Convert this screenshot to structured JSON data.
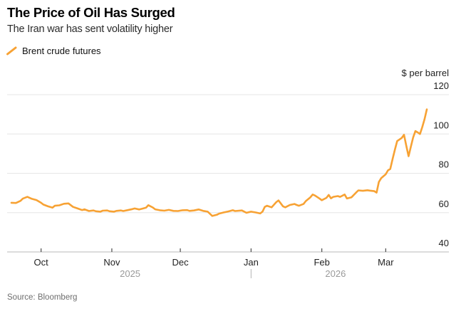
{
  "source": "Source: Bloomberg",
  "colors": {
    "line": "#F7A234",
    "grid": "#E6E6E6",
    "baseline": "#C6C6C6",
    "month_tick": "#4A4A4A",
    "year_text": "#9A9A9A",
    "year_divider": "#B5B5B5"
  },
  "chart_data": {
    "type": "line",
    "title": "The Price of Oil Has Surged",
    "subtitle": "The Iran war has sent volatility higher",
    "ylabel": "$ per barrel",
    "ylim": [
      40,
      120
    ],
    "y_ticks": [
      40,
      60,
      80,
      100,
      120
    ],
    "grid": "horizontal",
    "legend_position": "top-left",
    "x_range": [
      "2025-09-18",
      "2026-03-19"
    ],
    "x_ticks": [
      {
        "label": "Oct",
        "date": "2025-10-01"
      },
      {
        "label": "Nov",
        "date": "2025-11-01"
      },
      {
        "label": "Dec",
        "date": "2025-12-01"
      },
      {
        "label": "Jan",
        "date": "2026-01-01"
      },
      {
        "label": "Feb",
        "date": "2026-02-01"
      },
      {
        "label": "Mar",
        "date": "2026-03-01"
      }
    ],
    "year_labels": [
      {
        "label": "2025",
        "date": "2025-11-09"
      },
      {
        "label": "2026",
        "date": "2026-02-07"
      }
    ],
    "year_divider_date": "2026-01-01",
    "series": [
      {
        "name": "Brent crude futures",
        "dates": [
          "2025-09-18",
          "2025-09-20",
          "2025-09-22",
          "2025-09-23",
          "2025-09-25",
          "2025-09-27",
          "2025-09-29",
          "2025-10-01",
          "2025-10-02",
          "2025-10-04",
          "2025-10-06",
          "2025-10-07",
          "2025-10-09",
          "2025-10-11",
          "2025-10-13",
          "2025-10-15",
          "2025-10-17",
          "2025-10-19",
          "2025-10-20",
          "2025-10-22",
          "2025-10-24",
          "2025-10-25",
          "2025-10-27",
          "2025-10-28",
          "2025-10-30",
          "2025-10-31",
          "2025-11-02",
          "2025-11-03",
          "2025-11-05",
          "2025-11-06",
          "2025-11-08",
          "2025-11-10",
          "2025-11-11",
          "2025-11-13",
          "2025-11-14",
          "2025-11-16",
          "2025-11-17",
          "2025-11-19",
          "2025-11-20",
          "2025-11-22",
          "2025-11-24",
          "2025-11-26",
          "2025-11-28",
          "2025-11-30",
          "2025-12-02",
          "2025-12-04",
          "2025-12-05",
          "2025-12-07",
          "2025-12-09",
          "2025-12-11",
          "2025-12-13",
          "2025-12-15",
          "2025-12-17",
          "2025-12-18",
          "2025-12-20",
          "2025-12-22",
          "2025-12-24",
          "2025-12-25",
          "2025-12-28",
          "2025-12-30",
          "2026-01-01",
          "2026-01-03",
          "2026-01-05",
          "2026-01-06",
          "2026-01-07",
          "2026-01-08",
          "2026-01-10",
          "2026-01-12",
          "2026-01-13",
          "2026-01-15",
          "2026-01-16",
          "2026-01-18",
          "2026-01-20",
          "2026-01-21",
          "2026-01-22",
          "2026-01-24",
          "2026-01-25",
          "2026-01-27",
          "2026-01-28",
          "2026-01-29",
          "2026-01-31",
          "2026-02-01",
          "2026-02-03",
          "2026-02-04",
          "2026-02-05",
          "2026-02-06",
          "2026-02-08",
          "2026-02-09",
          "2026-02-11",
          "2026-02-12",
          "2026-02-14",
          "2026-02-16",
          "2026-02-17",
          "2026-02-19",
          "2026-02-21",
          "2026-02-22",
          "2026-02-24",
          "2026-02-25",
          "2026-02-26",
          "2026-02-27",
          "2026-03-01",
          "2026-03-02",
          "2026-03-03",
          "2026-03-04",
          "2026-03-05",
          "2026-03-06",
          "2026-03-08",
          "2026-03-09",
          "2026-03-10",
          "2026-03-11",
          "2026-03-12",
          "2026-03-13",
          "2026-03-14",
          "2026-03-15",
          "2026-03-16",
          "2026-03-17",
          "2026-03-18",
          "2026-03-19"
        ],
        "values": [
          65.0,
          64.9,
          66.0,
          67.1,
          68.0,
          67.0,
          66.4,
          65.0,
          64.1,
          63.2,
          62.5,
          63.5,
          63.7,
          64.5,
          64.7,
          62.9,
          62.1,
          61.3,
          61.7,
          60.8,
          61.1,
          60.7,
          60.5,
          61.0,
          61.1,
          60.7,
          60.5,
          60.9,
          61.1,
          60.8,
          61.3,
          61.8,
          62.1,
          61.6,
          61.9,
          62.5,
          63.8,
          62.6,
          61.7,
          61.2,
          61.0,
          61.4,
          60.9,
          60.8,
          61.2,
          61.3,
          60.9,
          61.1,
          61.6,
          60.9,
          60.5,
          58.3,
          58.9,
          59.5,
          60.1,
          60.6,
          61.2,
          60.8,
          61.1,
          59.9,
          60.5,
          60.1,
          59.6,
          60.5,
          62.9,
          63.5,
          62.7,
          65.3,
          66.2,
          63.2,
          62.7,
          63.9,
          64.4,
          63.9,
          63.5,
          64.4,
          65.9,
          67.8,
          69.2,
          68.7,
          67.2,
          66.3,
          67.5,
          69.0,
          67.3,
          68.0,
          68.4,
          68.0,
          69.2,
          67.2,
          67.8,
          70.2,
          71.3,
          71.1,
          71.4,
          71.2,
          70.9,
          70.2,
          75.6,
          77.5,
          79.5,
          81.5,
          82.2,
          87.3,
          92.0,
          96.4,
          98.0,
          99.6,
          94.0,
          88.7,
          93.5,
          98.2,
          101.5,
          100.8,
          100.0,
          103.5,
          107.5,
          112.5
        ]
      }
    ]
  }
}
